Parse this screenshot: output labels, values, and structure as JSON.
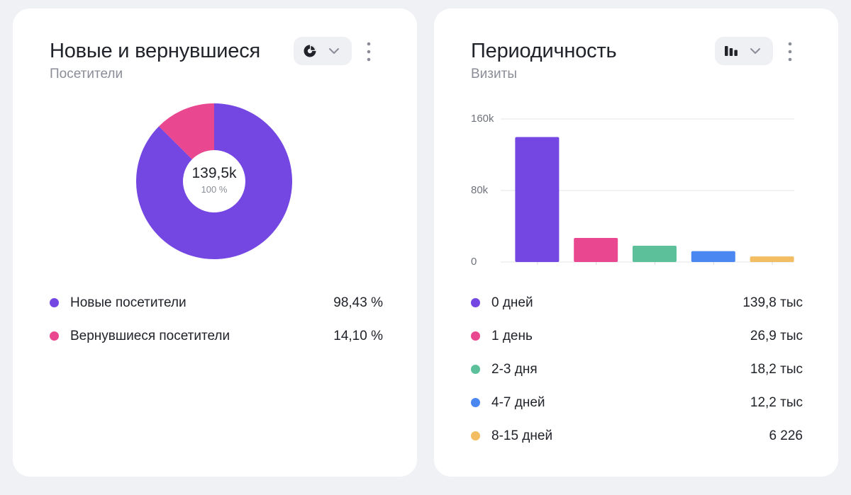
{
  "cards": [
    {
      "title": "Новые и вернувшиеся",
      "subtitle": "Посетители",
      "chart_switch_icon": "pie-chart-icon",
      "donut_center": {
        "value": "139,5k",
        "percent": "100 %"
      },
      "legend": [
        {
          "label": "Новые посетители",
          "value": "98,43 %",
          "color": "#7447e3"
        },
        {
          "label": "Вернувшиеся посетители",
          "value": "14,10 %",
          "color": "#e9478f"
        }
      ]
    },
    {
      "title": "Периодичность",
      "subtitle": "Визиты",
      "chart_switch_icon": "bar-chart-icon",
      "legend": [
        {
          "label": "0 дней",
          "value": "139,8 тыс",
          "color": "#7447e3"
        },
        {
          "label": "1 день",
          "value": "26,9 тыс",
          "color": "#e9478f"
        },
        {
          "label": "2-3 дня",
          "value": "18,2 тыс",
          "color": "#5cc19a"
        },
        {
          "label": "4-7 дней",
          "value": "12,2 тыс",
          "color": "#4b87f0"
        },
        {
          "label": "8-15 дней",
          "value": "6 226",
          "color": "#f3bd63"
        }
      ]
    }
  ],
  "chart_data": [
    {
      "type": "pie",
      "title": "Новые и вернувшиеся",
      "subtitle": "Посетители",
      "center_label": "139,5k",
      "center_sublabel": "100 %",
      "categories": [
        "Новые посетители",
        "Вернувшиеся посетители"
      ],
      "values": [
        98.43,
        14.1
      ],
      "colors": [
        "#7447e3",
        "#e9478f"
      ],
      "legend": "bottom"
    },
    {
      "type": "bar",
      "title": "Периодичность",
      "subtitle": "Визиты",
      "categories": [
        "0 дней",
        "1 день",
        "2-3 дня",
        "4-7 дней",
        "8-15 дней"
      ],
      "values": [
        139800,
        26900,
        18200,
        12200,
        6226
      ],
      "colors": [
        "#7447e3",
        "#e9478f",
        "#5cc19a",
        "#4b87f0",
        "#f3bd63"
      ],
      "ylim": [
        0,
        160000
      ],
      "yticks": [
        0,
        80000,
        160000
      ],
      "ytick_labels": [
        "0",
        "80k",
        "160k"
      ],
      "grid": true,
      "legend": "bottom"
    }
  ]
}
